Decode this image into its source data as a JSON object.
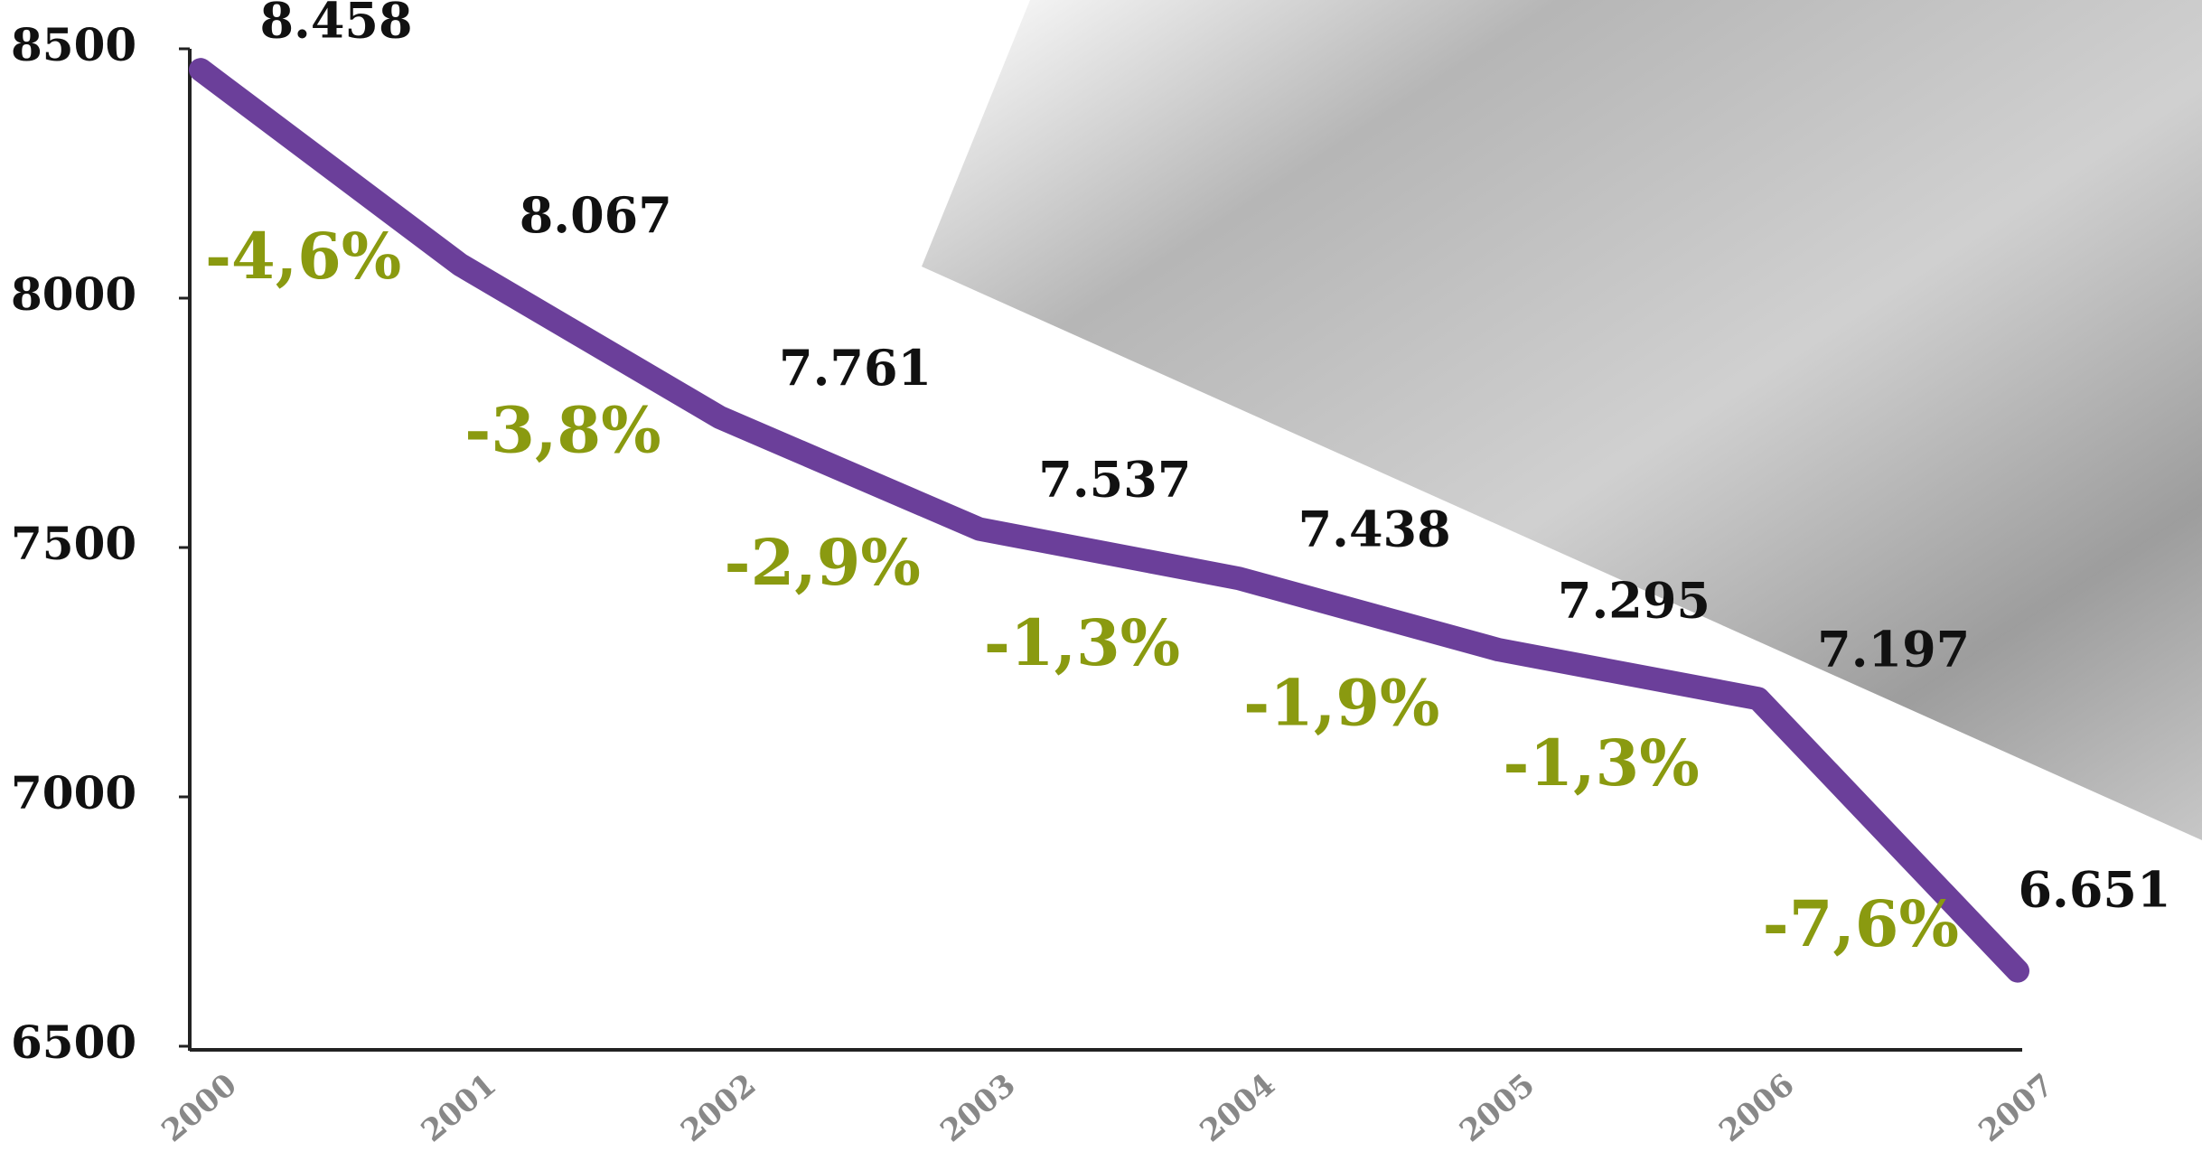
{
  "chart_data": {
    "type": "line",
    "categories": [
      "2000",
      "2001",
      "2002",
      "2003",
      "2004",
      "2005",
      "2006",
      "2007"
    ],
    "series": [
      {
        "color": "#6b3f9a",
        "values": [
          8458,
          8067,
          7761,
          7537,
          7438,
          7295,
          7197,
          6651
        ],
        "value_labels": [
          "8.458",
          "8.067",
          "7.761",
          "7.537",
          "7.438",
          "7.295",
          "7.197",
          "6.651"
        ]
      }
    ],
    "annotations": [
      "-4,6%",
      "-3,8%",
      "-2,9%",
      "-1,3%",
      "-1,9%",
      "-1,3%",
      "-7,6%"
    ],
    "annotation_color": "#8a9a10",
    "ylim": [
      6500,
      8500
    ],
    "yticks": [
      6500,
      7000,
      7500,
      8000,
      8500
    ]
  }
}
